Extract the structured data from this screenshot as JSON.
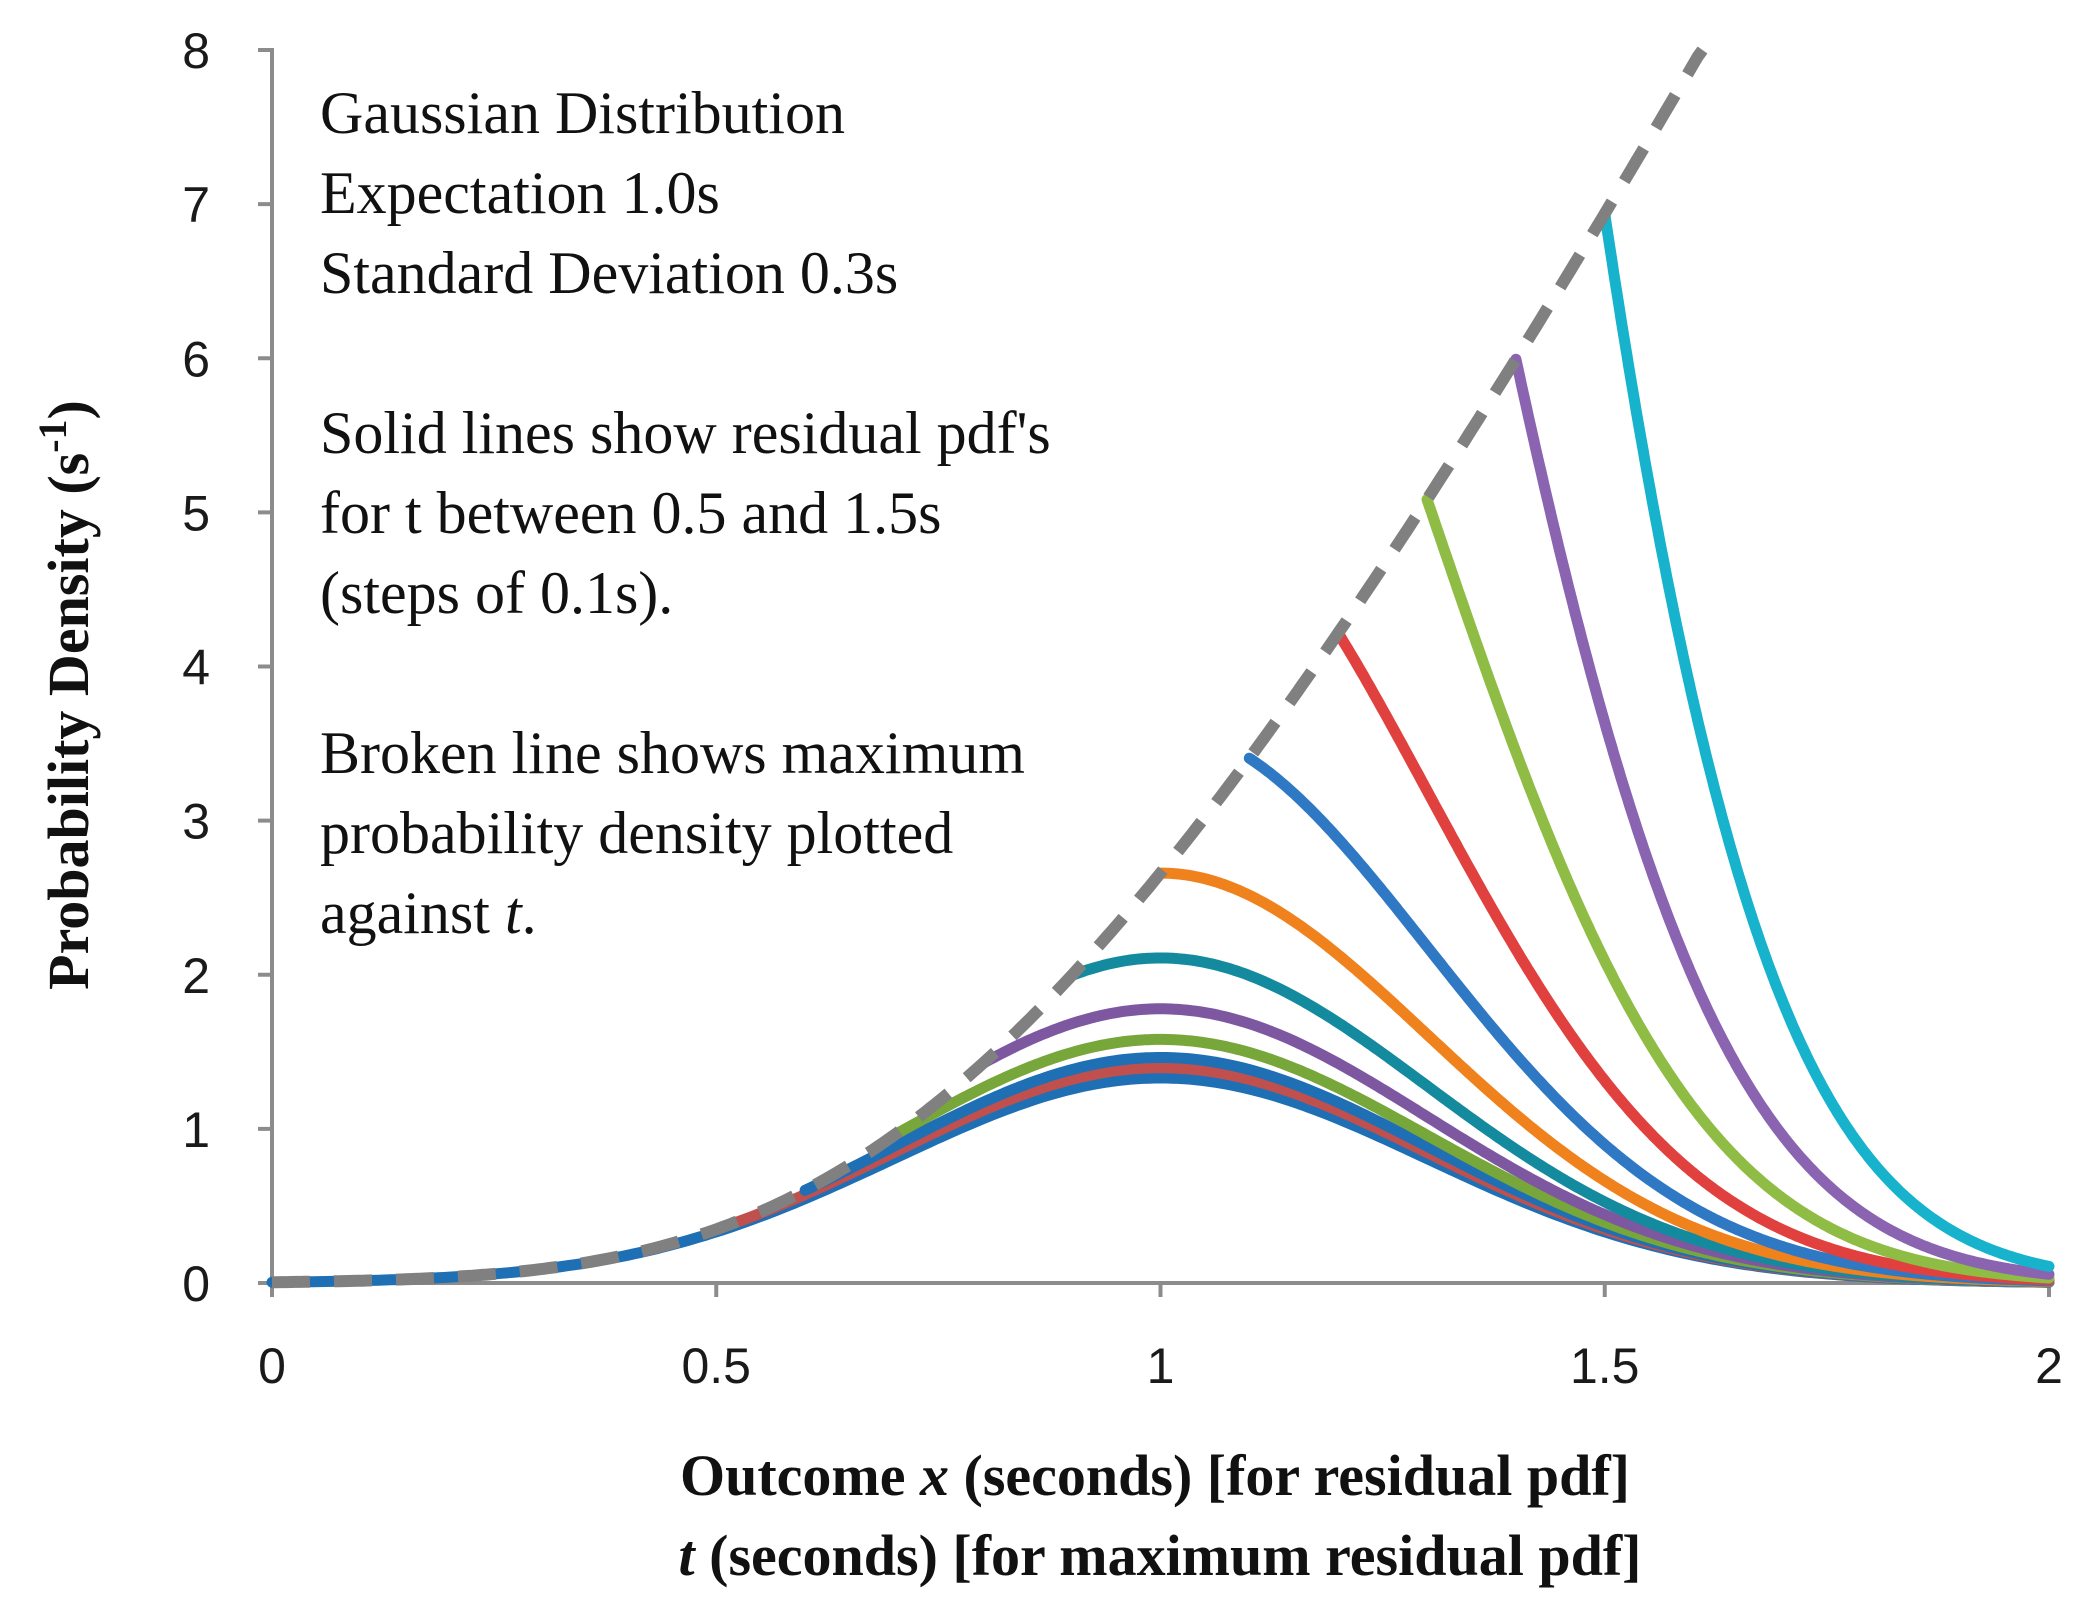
{
  "chart_data": {
    "type": "line",
    "annotations": [
      "Gaussian Distribution",
      "Expectation 1.0s",
      "Standard Deviation 0.3s",
      "",
      "Solid lines show residual pdf's",
      "for t between 0.5 and 1.5s",
      "(steps of 0.1s).",
      "",
      "Broken line shows maximum",
      "probability density plotted",
      "against t."
    ],
    "xlabel": {
      "line1_var": "Outcome ",
      "line1_italic": "x",
      "line1_rest": " (seconds) [for residual pdf]",
      "line2_italic": "t",
      "line2_rest": " (seconds) [for maximum residual pdf]"
    },
    "ylabel": {
      "text": "Probability Density (s",
      "sup": "-1",
      "close": ")"
    },
    "xlim": [
      0,
      2
    ],
    "ylim": [
      0,
      8
    ],
    "x_ticks": [
      "0",
      "0.5",
      "1",
      "1.5",
      "2"
    ],
    "y_ticks": [
      "0",
      "1",
      "2",
      "3",
      "4",
      "5",
      "6",
      "7",
      "8"
    ],
    "distribution": {
      "mean": 1.0,
      "sd": 0.3
    },
    "x_range": [
      0,
      2
    ],
    "series": [
      {
        "t": 0.0,
        "color": "#1f6fb5"
      },
      {
        "t": 0.5,
        "color": "#c0504d"
      },
      {
        "t": 0.6,
        "color": "#1f6fb5"
      },
      {
        "t": 0.7,
        "color": "#77a63a"
      },
      {
        "t": 0.8,
        "color": "#7e57a1"
      },
      {
        "t": 0.9,
        "color": "#138a9e"
      },
      {
        "t": 1.0,
        "color": "#f0821e"
      },
      {
        "t": 1.1,
        "color": "#2f78c4"
      },
      {
        "t": 1.2,
        "color": "#e0413f"
      },
      {
        "t": 1.3,
        "color": "#8fbc44"
      },
      {
        "t": 1.4,
        "color": "#8a63b1"
      },
      {
        "t": 1.5,
        "color": "#17b2cc"
      }
    ],
    "max_curve": {
      "t_range": [
        0,
        1.61
      ],
      "color": "#808080",
      "dashed": true
    }
  }
}
